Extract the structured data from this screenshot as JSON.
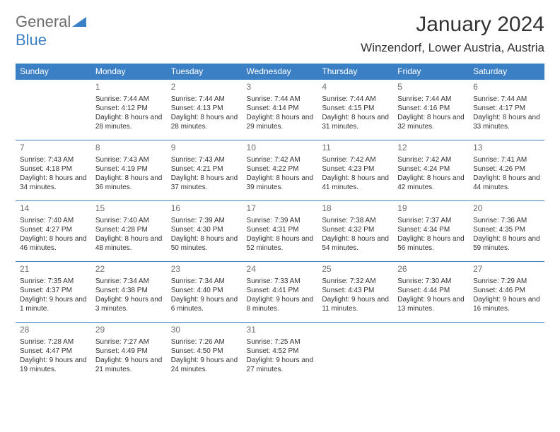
{
  "logo": {
    "part1": "General",
    "part2": "Blue"
  },
  "title": "January 2024",
  "location": "Winzendorf, Lower Austria, Austria",
  "colors": {
    "header_bg": "#3b7fc4",
    "header_text": "#ffffff",
    "border": "#3b7fc4",
    "daynum": "#6d6d6d",
    "body_text": "#333333",
    "logo_gray": "#6d6d6d",
    "logo_blue": "#3b7fc4",
    "background": "#ffffff"
  },
  "typography": {
    "title_fontsize": 30,
    "location_fontsize": 17,
    "dayheader_fontsize": 12,
    "daynum_fontsize": 12,
    "cell_fontsize": 10
  },
  "day_headers": [
    "Sunday",
    "Monday",
    "Tuesday",
    "Wednesday",
    "Thursday",
    "Friday",
    "Saturday"
  ],
  "weeks": [
    [
      null,
      {
        "n": "1",
        "sr": "7:44 AM",
        "ss": "4:12 PM",
        "dl": "8 hours and 28 minutes."
      },
      {
        "n": "2",
        "sr": "7:44 AM",
        "ss": "4:13 PM",
        "dl": "8 hours and 28 minutes."
      },
      {
        "n": "3",
        "sr": "7:44 AM",
        "ss": "4:14 PM",
        "dl": "8 hours and 29 minutes."
      },
      {
        "n": "4",
        "sr": "7:44 AM",
        "ss": "4:15 PM",
        "dl": "8 hours and 31 minutes."
      },
      {
        "n": "5",
        "sr": "7:44 AM",
        "ss": "4:16 PM",
        "dl": "8 hours and 32 minutes."
      },
      {
        "n": "6",
        "sr": "7:44 AM",
        "ss": "4:17 PM",
        "dl": "8 hours and 33 minutes."
      }
    ],
    [
      {
        "n": "7",
        "sr": "7:43 AM",
        "ss": "4:18 PM",
        "dl": "8 hours and 34 minutes."
      },
      {
        "n": "8",
        "sr": "7:43 AM",
        "ss": "4:19 PM",
        "dl": "8 hours and 36 minutes."
      },
      {
        "n": "9",
        "sr": "7:43 AM",
        "ss": "4:21 PM",
        "dl": "8 hours and 37 minutes."
      },
      {
        "n": "10",
        "sr": "7:42 AM",
        "ss": "4:22 PM",
        "dl": "8 hours and 39 minutes."
      },
      {
        "n": "11",
        "sr": "7:42 AM",
        "ss": "4:23 PM",
        "dl": "8 hours and 41 minutes."
      },
      {
        "n": "12",
        "sr": "7:42 AM",
        "ss": "4:24 PM",
        "dl": "8 hours and 42 minutes."
      },
      {
        "n": "13",
        "sr": "7:41 AM",
        "ss": "4:26 PM",
        "dl": "8 hours and 44 minutes."
      }
    ],
    [
      {
        "n": "14",
        "sr": "7:40 AM",
        "ss": "4:27 PM",
        "dl": "8 hours and 46 minutes."
      },
      {
        "n": "15",
        "sr": "7:40 AM",
        "ss": "4:28 PM",
        "dl": "8 hours and 48 minutes."
      },
      {
        "n": "16",
        "sr": "7:39 AM",
        "ss": "4:30 PM",
        "dl": "8 hours and 50 minutes."
      },
      {
        "n": "17",
        "sr": "7:39 AM",
        "ss": "4:31 PM",
        "dl": "8 hours and 52 minutes."
      },
      {
        "n": "18",
        "sr": "7:38 AM",
        "ss": "4:32 PM",
        "dl": "8 hours and 54 minutes."
      },
      {
        "n": "19",
        "sr": "7:37 AM",
        "ss": "4:34 PM",
        "dl": "8 hours and 56 minutes."
      },
      {
        "n": "20",
        "sr": "7:36 AM",
        "ss": "4:35 PM",
        "dl": "8 hours and 59 minutes."
      }
    ],
    [
      {
        "n": "21",
        "sr": "7:35 AM",
        "ss": "4:37 PM",
        "dl": "9 hours and 1 minute."
      },
      {
        "n": "22",
        "sr": "7:34 AM",
        "ss": "4:38 PM",
        "dl": "9 hours and 3 minutes."
      },
      {
        "n": "23",
        "sr": "7:34 AM",
        "ss": "4:40 PM",
        "dl": "9 hours and 6 minutes."
      },
      {
        "n": "24",
        "sr": "7:33 AM",
        "ss": "4:41 PM",
        "dl": "9 hours and 8 minutes."
      },
      {
        "n": "25",
        "sr": "7:32 AM",
        "ss": "4:43 PM",
        "dl": "9 hours and 11 minutes."
      },
      {
        "n": "26",
        "sr": "7:30 AM",
        "ss": "4:44 PM",
        "dl": "9 hours and 13 minutes."
      },
      {
        "n": "27",
        "sr": "7:29 AM",
        "ss": "4:46 PM",
        "dl": "9 hours and 16 minutes."
      }
    ],
    [
      {
        "n": "28",
        "sr": "7:28 AM",
        "ss": "4:47 PM",
        "dl": "9 hours and 19 minutes."
      },
      {
        "n": "29",
        "sr": "7:27 AM",
        "ss": "4:49 PM",
        "dl": "9 hours and 21 minutes."
      },
      {
        "n": "30",
        "sr": "7:26 AM",
        "ss": "4:50 PM",
        "dl": "9 hours and 24 minutes."
      },
      {
        "n": "31",
        "sr": "7:25 AM",
        "ss": "4:52 PM",
        "dl": "9 hours and 27 minutes."
      },
      null,
      null,
      null
    ]
  ],
  "labels": {
    "sunrise": "Sunrise:",
    "sunset": "Sunset:",
    "daylight": "Daylight:"
  }
}
